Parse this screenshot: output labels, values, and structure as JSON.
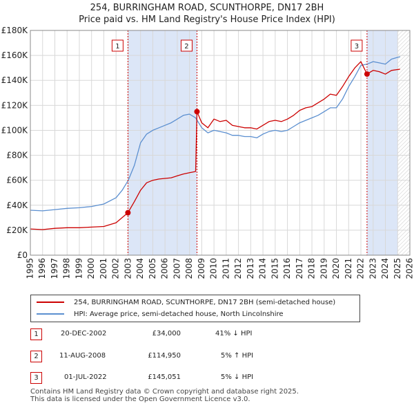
{
  "title_line1": "254, BURRINGHAM ROAD, SCUNTHORPE, DN17 2BH",
  "title_line2": "Price paid vs. HM Land Registry's House Price Index (HPI)",
  "legend": {
    "property_label": "254, BURRINGHAM ROAD, SCUNTHORPE, DN17 2BH (semi-detached house)",
    "hpi_label": "HPI: Average price, semi-detached house, North Lincolnshire"
  },
  "transactions": [
    {
      "num": "1",
      "date": "20-DEC-2002",
      "price": "£34,000",
      "hpi_diff": "41% ↓ HPI"
    },
    {
      "num": "2",
      "date": "11-AUG-2008",
      "price": "£114,950",
      "hpi_diff": "5% ↑ HPI"
    },
    {
      "num": "3",
      "date": "01-JUL-2022",
      "price": "£145,051",
      "hpi_diff": "5% ↓ HPI"
    }
  ],
  "footer_line1": "Contains HM Land Registry data © Crown copyright and database right 2025.",
  "footer_line2": "This data is licensed under the Open Government Licence v3.0.",
  "colors": {
    "property": "#cc0000",
    "hpi": "#5b8fd0",
    "shade": "#dce6f7",
    "grid": "#d8d8d8"
  },
  "chart_data": {
    "type": "line",
    "title": "254, BURRINGHAM ROAD, SCUNTHORPE, DN17 2BH",
    "xlim": [
      1995,
      2026
    ],
    "ylim": [
      0,
      180000
    ],
    "x_ticks": [
      1995,
      1996,
      1997,
      1998,
      1999,
      2000,
      2001,
      2002,
      2003,
      2004,
      2005,
      2006,
      2007,
      2008,
      2009,
      2010,
      2011,
      2012,
      2013,
      2014,
      2015,
      2016,
      2017,
      2018,
      2019,
      2020,
      2021,
      2022,
      2023,
      2024,
      2025,
      2026
    ],
    "y_ticks": [
      0,
      20000,
      40000,
      60000,
      80000,
      100000,
      120000,
      140000,
      160000,
      180000
    ],
    "y_tick_labels": [
      "£0",
      "£20K",
      "£40K",
      "£60K",
      "£80K",
      "£100K",
      "£120K",
      "£140K",
      "£160K",
      "£180K"
    ],
    "shaded_ranges": [
      [
        2002.97,
        2008.61
      ],
      [
        2022.5,
        2025.0
      ]
    ],
    "hatched_from": 2025.0,
    "markers": [
      {
        "label": "1",
        "x": 2002.97,
        "y": 34000
      },
      {
        "label": "2",
        "x": 2008.61,
        "y": 114950
      },
      {
        "label": "3",
        "x": 2022.5,
        "y": 145051
      }
    ],
    "series": [
      {
        "name": "254, BURRINGHAM ROAD, SCUNTHORPE, DN17 2BH (semi-detached house)",
        "x": [
          1995,
          1996,
          1997,
          1998,
          1999,
          2000,
          2001,
          2002,
          2002.97,
          2003.5,
          2004,
          2004.5,
          2005,
          2005.5,
          2006,
          2006.5,
          2007,
          2007.5,
          2008,
          2008.5,
          2008.61,
          2009,
          2009.5,
          2010,
          2010.5,
          2011,
          2011.5,
          2012,
          2012.5,
          2013,
          2013.5,
          2014,
          2014.5,
          2015,
          2015.5,
          2016,
          2016.5,
          2017,
          2017.5,
          2018,
          2018.5,
          2019,
          2019.5,
          2020,
          2020.5,
          2021,
          2021.5,
          2022,
          2022.5,
          2023,
          2023.5,
          2024,
          2024.5,
          2025.2
        ],
        "values": [
          21000,
          20500,
          21500,
          22000,
          22000,
          22500,
          23000,
          26000,
          34000,
          43000,
          52000,
          58000,
          60000,
          61000,
          61500,
          62000,
          63500,
          65000,
          66000,
          67000,
          114950,
          106000,
          102000,
          109000,
          107000,
          108000,
          104000,
          103000,
          102000,
          102000,
          101000,
          104000,
          107000,
          108000,
          107000,
          109000,
          112000,
          116000,
          118000,
          119000,
          122000,
          125000,
          129000,
          128000,
          135000,
          143000,
          150000,
          155000,
          145051,
          148000,
          147000,
          145000,
          148000,
          149000
        ]
      },
      {
        "name": "HPI: Average price, semi-detached house, North Lincolnshire",
        "x": [
          1995,
          1996,
          1997,
          1998,
          1999,
          2000,
          2001,
          2002,
          2002.5,
          2003,
          2003.5,
          2004,
          2004.5,
          2005,
          2005.5,
          2006,
          2006.5,
          2007,
          2007.5,
          2008,
          2008.5,
          2009,
          2009.5,
          2010,
          2010.5,
          2011,
          2011.5,
          2012,
          2012.5,
          2013,
          2013.5,
          2014,
          2014.5,
          2015,
          2015.5,
          2016,
          2016.5,
          2017,
          2017.5,
          2018,
          2018.5,
          2019,
          2019.5,
          2020,
          2020.5,
          2021,
          2021.5,
          2022,
          2022.5,
          2023,
          2023.5,
          2024,
          2024.5,
          2025.2
        ],
        "values": [
          36000,
          35500,
          36500,
          37500,
          38000,
          39000,
          41000,
          46000,
          52000,
          60000,
          72000,
          90000,
          97000,
          100000,
          102000,
          104000,
          106000,
          109000,
          112000,
          113000,
          110000,
          102000,
          98000,
          100000,
          99000,
          98000,
          96000,
          96000,
          95000,
          95000,
          94000,
          97000,
          99000,
          100000,
          99000,
          100000,
          103000,
          106000,
          108000,
          110000,
          112000,
          115000,
          118000,
          118000,
          125000,
          135000,
          143000,
          152000,
          153000,
          155000,
          154000,
          153000,
          157000,
          159000
        ]
      }
    ]
  }
}
